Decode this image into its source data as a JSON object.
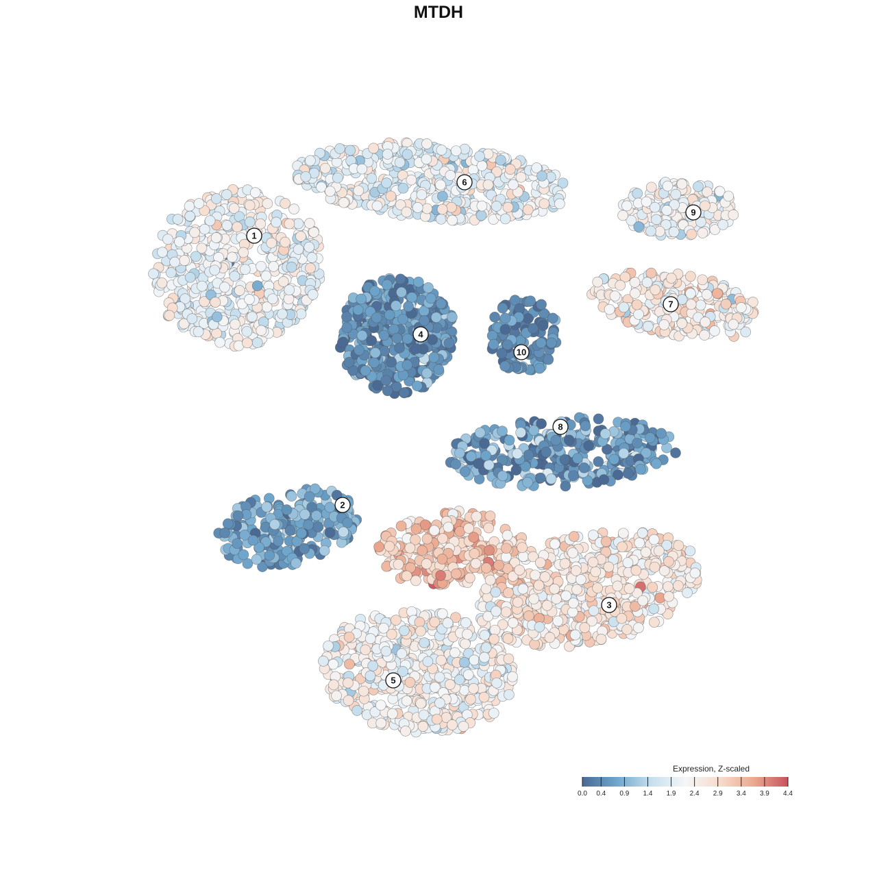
{
  "chart_data": {
    "type": "scatter",
    "title": "MTDH",
    "xlabel": "",
    "ylabel": "",
    "grid": false,
    "legend": {
      "title": "Expression, Z-scaled",
      "placement": "bottom-right",
      "ticks": [
        "0.0",
        "0.4",
        "0.9",
        "1.4",
        "1.9",
        "2.4",
        "2.9",
        "3.4",
        "3.9",
        "4.4"
      ],
      "range": [
        0.0,
        4.4
      ]
    },
    "colorscale": [
      "#4a6a94",
      "#6fa6cc",
      "#c6dfee",
      "#f4f6f8",
      "#f7dccd",
      "#eba98f",
      "#c8525e"
    ],
    "clusters": [
      {
        "label": "1",
        "mean_expression": 2.1
      },
      {
        "label": "2",
        "mean_expression": 0.7
      },
      {
        "label": "3",
        "mean_expression": 2.6
      },
      {
        "label": "4",
        "mean_expression": 0.5
      },
      {
        "label": "5",
        "mean_expression": 2.3
      },
      {
        "label": "6",
        "mean_expression": 2.0
      },
      {
        "label": "7",
        "mean_expression": 2.4
      },
      {
        "label": "8",
        "mean_expression": 0.6
      },
      {
        "label": "9",
        "mean_expression": 2.2
      },
      {
        "label": "10",
        "mean_expression": 0.4
      }
    ]
  }
}
